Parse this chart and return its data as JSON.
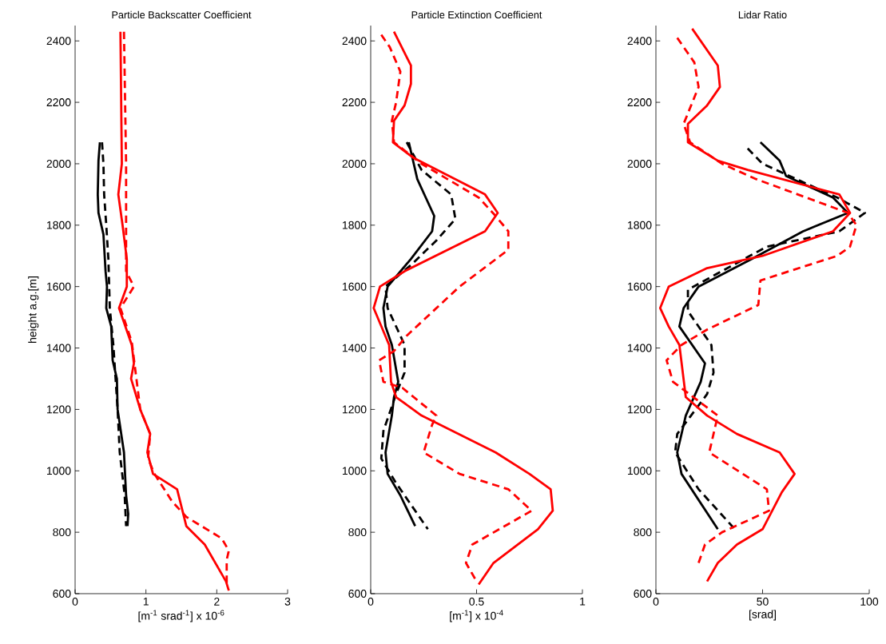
{
  "chart_data": [
    {
      "type": "line",
      "title": "Particle Backscatter Coefficient",
      "xlabel": "[m$^{-1}$ srad$^{-1}$]  x 10$^{-6}$",
      "ylabel": "height a.g.[m]",
      "xlim": [
        0,
        3
      ],
      "xticks": [
        0,
        1,
        2,
        3
      ],
      "ylim": [
        600,
        2450
      ],
      "yticks": [
        600,
        800,
        1000,
        1200,
        1400,
        1600,
        1800,
        2000,
        2200,
        2400
      ],
      "series": [
        {
          "color": "#000000",
          "line_style": "solid",
          "x": [
            0.35,
            0.33,
            0.32,
            0.33,
            0.4,
            0.43,
            0.45,
            0.44,
            0.51,
            0.53,
            0.59,
            0.6,
            0.69,
            0.72,
            0.75,
            0.74
          ],
          "values": [
            2070,
            2010,
            1900,
            1840,
            1770,
            1650,
            1600,
            1530,
            1470,
            1360,
            1300,
            1200,
            1060,
            920,
            860,
            820
          ]
        },
        {
          "color": "#000000",
          "line_style": "dashed",
          "x": [
            0.38,
            0.4,
            0.41,
            0.44,
            0.47,
            0.49,
            0.54,
            0.6,
            0.63,
            0.7,
            0.72
          ],
          "values": [
            2070,
            2000,
            1900,
            1800,
            1690,
            1530,
            1410,
            1200,
            1060,
            920,
            820
          ]
        },
        {
          "color": "#ff0000",
          "line_style": "solid",
          "x": [
            0.64,
            0.66,
            0.61,
            0.67,
            0.73,
            0.73,
            0.62,
            0.8,
            0.83,
            0.79,
            0.92,
            1.06,
            1.02,
            1.1,
            1.44,
            1.57,
            1.83,
            2.13,
            2.17
          ],
          "values": [
            2430,
            2000,
            1900,
            1800,
            1690,
            1600,
            1530,
            1410,
            1350,
            1300,
            1200,
            1120,
            1060,
            990,
            940,
            820,
            760,
            640,
            610
          ]
        },
        {
          "color": "#ff0000",
          "line_style": "dashed",
          "x": [
            0.69,
            0.72,
            0.72,
            0.83,
            0.64,
            0.8,
            0.92,
            1.06,
            1.03,
            1.12,
            1.37,
            1.57,
            2.07,
            2.17,
            2.14,
            2.14
          ],
          "values": [
            2430,
            2000,
            1650,
            1600,
            1530,
            1420,
            1200,
            1120,
            1040,
            990,
            900,
            850,
            780,
            740,
            710,
            620
          ]
        }
      ]
    },
    {
      "type": "line",
      "title": "Particle Extinction Coefficient",
      "xlabel": "[m$^{-1}$]  x 10$^{-4}$",
      "xlim": [
        0,
        1
      ],
      "xticks": [
        0,
        0.5,
        1
      ],
      "ylim": [
        600,
        2450
      ],
      "yticks": [
        600,
        800,
        1000,
        1200,
        1400,
        1600,
        1800,
        2000,
        2200,
        2400
      ],
      "series": [
        {
          "color": "#000000",
          "line_style": "solid",
          "x": [
            0.18,
            0.22,
            0.26,
            0.3,
            0.29,
            0.19,
            0.08,
            0.06,
            0.07,
            0.1,
            0.13,
            0.11,
            0.1,
            0.07,
            0.08,
            0.14,
            0.21
          ],
          "values": [
            2070,
            1950,
            1890,
            1830,
            1780,
            1690,
            1600,
            1530,
            1470,
            1410,
            1290,
            1240,
            1180,
            1060,
            990,
            920,
            820
          ]
        },
        {
          "color": "#000000",
          "line_style": "dashed",
          "x": [
            0.17,
            0.24,
            0.38,
            0.4,
            0.31,
            0.19,
            0.07,
            0.08,
            0.16,
            0.16,
            0.12,
            0.06,
            0.05,
            0.12,
            0.19,
            0.27
          ],
          "values": [
            2070,
            1980,
            1900,
            1820,
            1750,
            1670,
            1600,
            1530,
            1410,
            1320,
            1250,
            1130,
            1040,
            960,
            890,
            810
          ]
        },
        {
          "color": "#ff0000",
          "line_style": "solid",
          "x": [
            0.11,
            0.19,
            0.19,
            0.16,
            0.11,
            0.105,
            0.2,
            0.54,
            0.6,
            0.54,
            0.16,
            0.044,
            0.014,
            0.087,
            0.096,
            0.12,
            0.24,
            0.59,
            0.75,
            0.85,
            0.86,
            0.79,
            0.58,
            0.51
          ],
          "values": [
            2430,
            2320,
            2260,
            2190,
            2140,
            2070,
            2020,
            1900,
            1840,
            1780,
            1650,
            1600,
            1530,
            1410,
            1290,
            1240,
            1180,
            1060,
            990,
            940,
            870,
            810,
            700,
            630
          ]
        },
        {
          "color": "#ff0000",
          "line_style": "dashed",
          "x": [
            0.05,
            0.09,
            0.14,
            0.12,
            0.1,
            0.11,
            0.24,
            0.51,
            0.59,
            0.65,
            0.65,
            0.42,
            0.17,
            0.11,
            0.04,
            0.06,
            0.15,
            0.31,
            0.29,
            0.25,
            0.42,
            0.65,
            0.76,
            0.48,
            0.45,
            0.5
          ],
          "values": [
            2420,
            2380,
            2300,
            2200,
            2140,
            2070,
            2000,
            1890,
            1830,
            1780,
            1720,
            1600,
            1440,
            1390,
            1360,
            1290,
            1270,
            1180,
            1150,
            1060,
            990,
            940,
            870,
            760,
            700,
            640
          ]
        }
      ]
    },
    {
      "type": "line",
      "title": "Lidar Ratio",
      "xlabel": "[srad]",
      "xlim": [
        0,
        100
      ],
      "xticks": [
        0,
        50,
        100
      ],
      "ylim": [
        600,
        2450
      ],
      "yticks": [
        600,
        800,
        1000,
        1200,
        1400,
        1600,
        1800,
        2000,
        2200,
        2400
      ],
      "series": [
        {
          "color": "#000000",
          "line_style": "solid",
          "x": [
            49,
            58,
            61,
            83,
            90,
            69,
            45,
            20,
            13,
            11,
            23,
            21,
            14,
            10,
            12,
            29
          ],
          "values": [
            2070,
            2010,
            1960,
            1890,
            1840,
            1780,
            1690,
            1600,
            1530,
            1470,
            1350,
            1290,
            1180,
            1060,
            990,
            810
          ]
        },
        {
          "color": "#000000",
          "line_style": "dashed",
          "x": [
            43,
            50,
            69,
            85,
            98,
            86,
            52,
            15,
            15,
            26,
            27,
            24,
            10,
            9,
            20,
            37
          ],
          "values": [
            2050,
            2000,
            1940,
            1890,
            1840,
            1780,
            1730,
            1590,
            1520,
            1410,
            1320,
            1250,
            1120,
            1060,
            940,
            810
          ]
        },
        {
          "color": "#ff0000",
          "line_style": "solid",
          "x": [
            17,
            29,
            30,
            24,
            15,
            15,
            29,
            43,
            86,
            91,
            83,
            50,
            24,
            6,
            2,
            6,
            11,
            14,
            24,
            38,
            58,
            65,
            59,
            50,
            38,
            29,
            24
          ],
          "values": [
            2440,
            2320,
            2250,
            2190,
            2130,
            2070,
            2010,
            1980,
            1900,
            1840,
            1780,
            1700,
            1660,
            1600,
            1530,
            1470,
            1410,
            1240,
            1180,
            1120,
            1060,
            990,
            930,
            810,
            760,
            700,
            640
          ]
        },
        {
          "color": "#ff0000",
          "line_style": "dashed",
          "x": [
            10,
            18,
            20,
            13,
            16,
            31,
            47,
            90,
            94,
            91,
            85,
            49,
            48,
            24,
            12,
            5,
            8,
            29,
            25,
            52,
            53,
            31,
            23,
            20
          ],
          "values": [
            2410,
            2330,
            2250,
            2130,
            2070,
            2000,
            1950,
            1840,
            1800,
            1730,
            1700,
            1620,
            1540,
            1460,
            1410,
            1360,
            1290,
            1180,
            1060,
            940,
            870,
            800,
            760,
            700
          ]
        }
      ]
    }
  ]
}
